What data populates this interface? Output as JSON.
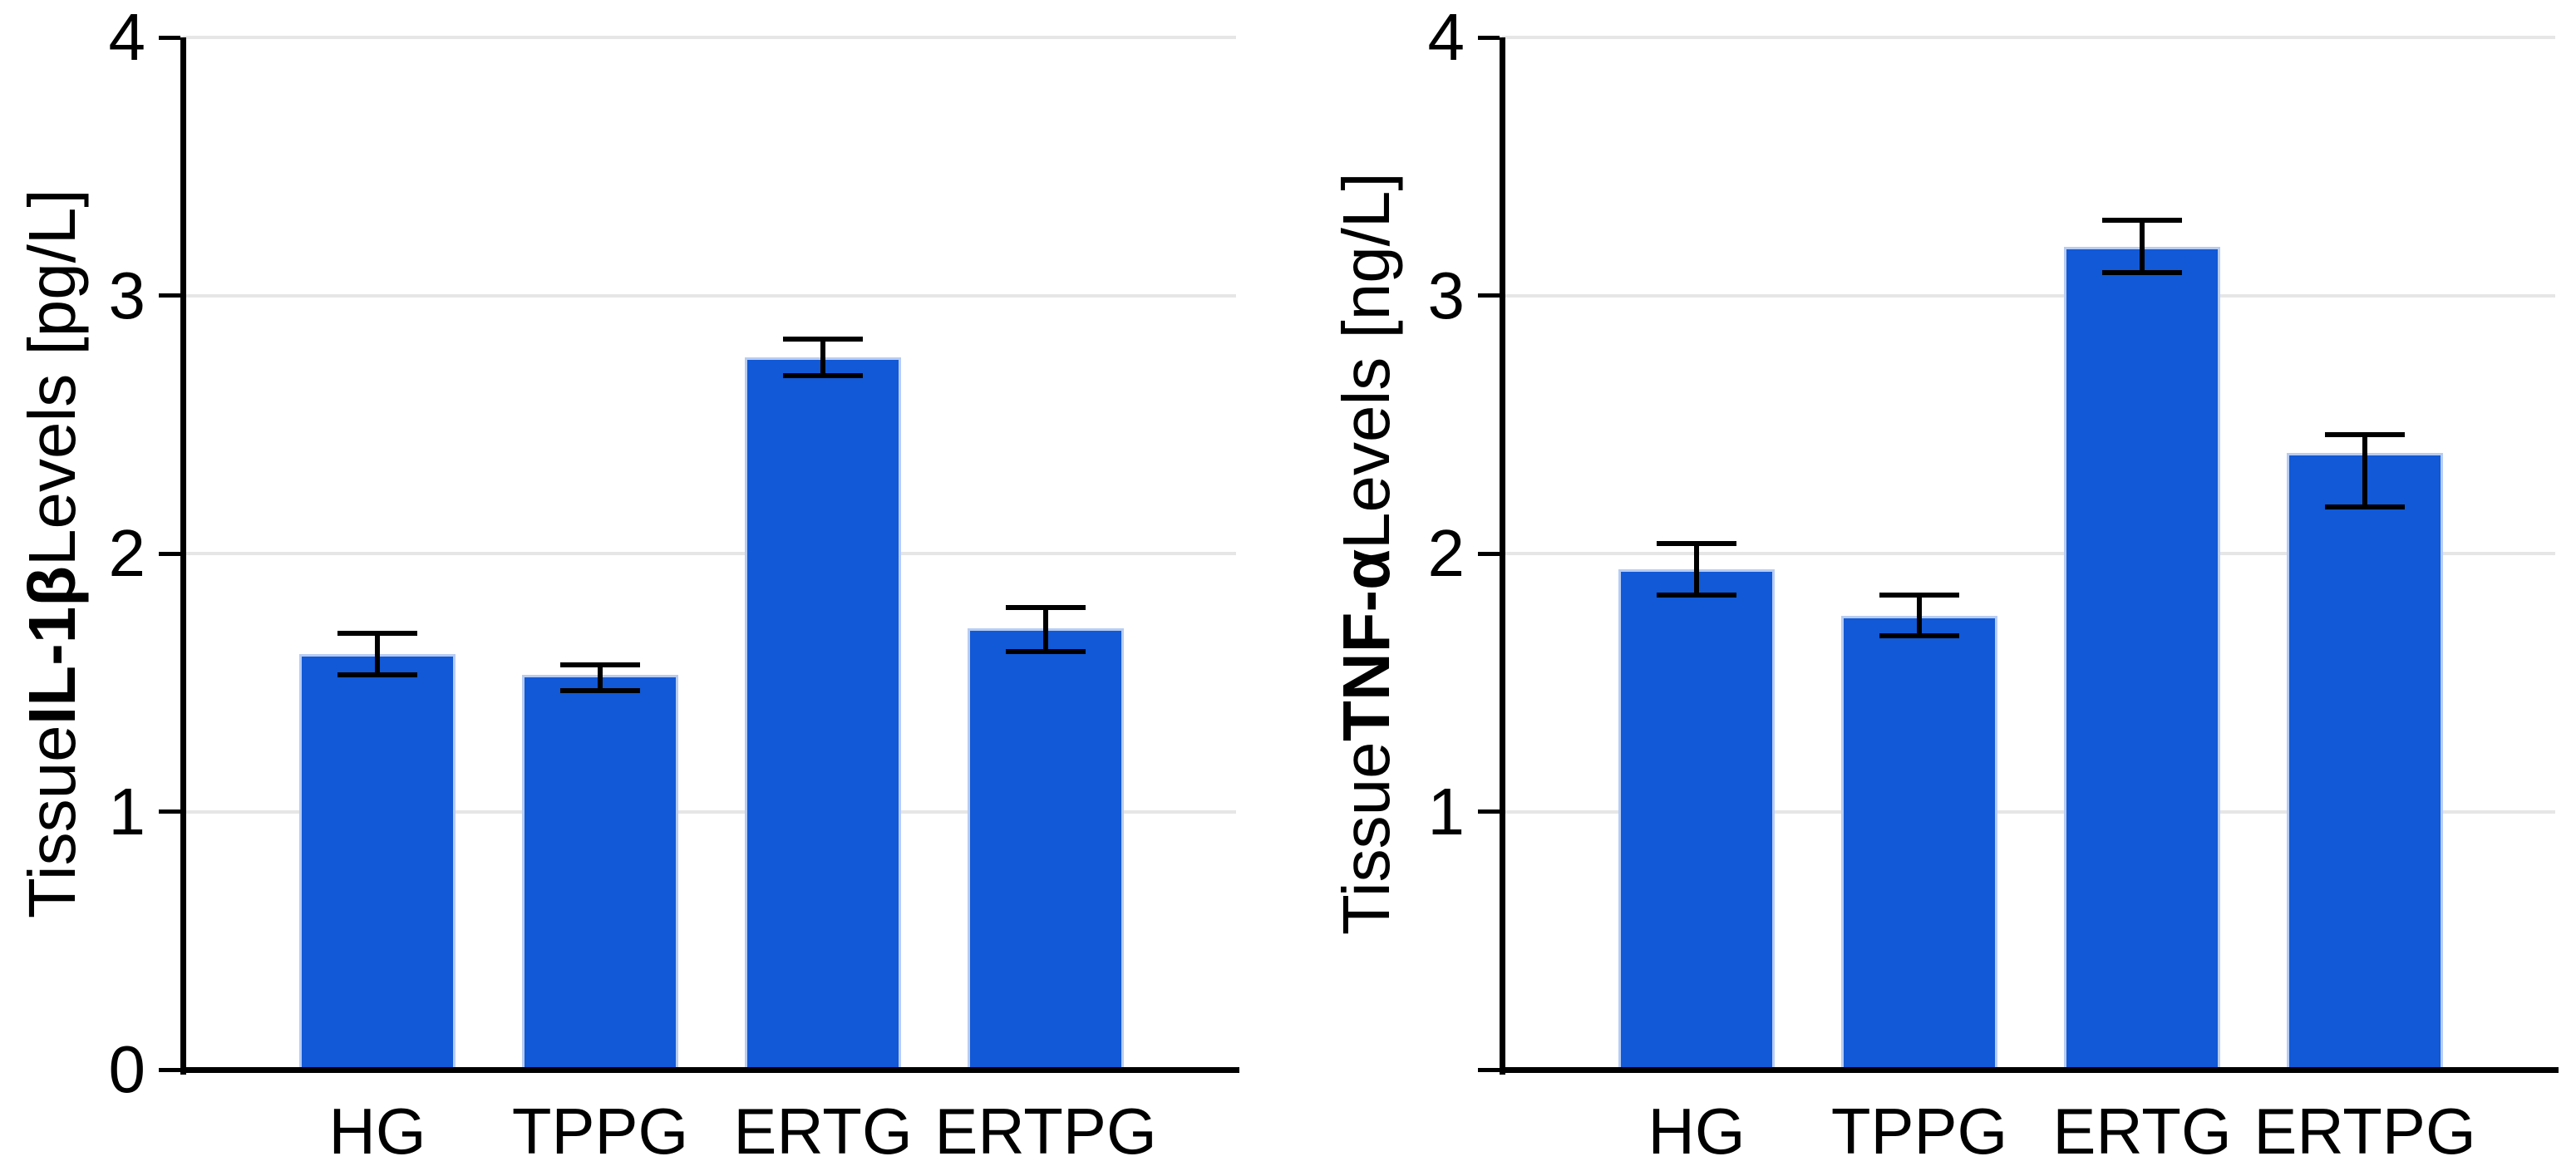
{
  "figure": {
    "background": "#ffffff",
    "bar_color": "#1159d6",
    "bar_edge_color": "#b8ccf2",
    "error_bar_color": "#000000",
    "gridline_color": "#e6e6e6",
    "axis_color": "#000000",
    "text_color": "#000000"
  },
  "chart_data": [
    {
      "type": "bar",
      "name": "il1b-bar-chart",
      "ylabel_prefix": "Tissue ",
      "ylabel_bold": "IL-1β",
      "ylabel_suffix": " Levels [pg/L]",
      "ylabel_full": "Tissue IL-1β Levels [pg/L]",
      "categories": [
        "HG",
        "TPPG",
        "ERTG",
        "ERTPG"
      ],
      "values": [
        1.61,
        1.53,
        2.76,
        1.71
      ],
      "error_up": [
        0.08,
        0.04,
        0.07,
        0.08
      ],
      "error_down": [
        0.08,
        0.06,
        0.07,
        0.09
      ],
      "ylim": [
        0,
        4
      ],
      "yticks": [
        0,
        1,
        2,
        3,
        4
      ],
      "ytick_labels": [
        "0",
        "1",
        "2",
        "3",
        "4"
      ],
      "xlabel": "",
      "grid": true,
      "legend_position": "none"
    },
    {
      "type": "bar",
      "name": "tnfa-bar-chart",
      "ylabel_prefix": "Tissue ",
      "ylabel_bold": "TNF-α",
      "ylabel_suffix": " Levels [ng/L]",
      "ylabel_full": "Tissue TNF-α Levels [ng/L]",
      "categories": [
        "HG",
        "TPPG",
        "ERTG",
        "ERTPG"
      ],
      "values": [
        1.94,
        1.76,
        3.19,
        2.39
      ],
      "error_up": [
        0.1,
        0.08,
        0.1,
        0.07
      ],
      "error_down": [
        0.1,
        0.08,
        0.1,
        0.21
      ],
      "ylim": [
        0,
        4
      ],
      "yticks": [
        0,
        1,
        2,
        3,
        4
      ],
      "ytick_labels": [
        "",
        "1",
        "2",
        "3",
        "4"
      ],
      "xlabel": "",
      "grid": true,
      "legend_position": "none"
    }
  ]
}
